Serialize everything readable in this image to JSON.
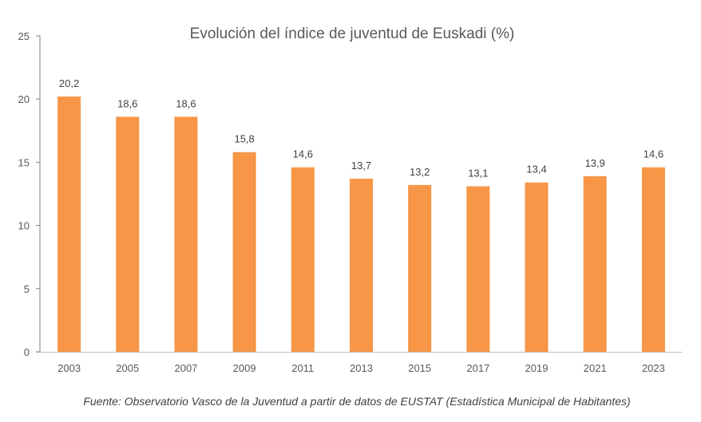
{
  "chart_data": {
    "type": "bar",
    "title": "Evolución del índice de juventud de Euskadi (%)",
    "categories": [
      "2003",
      "2005",
      "2007",
      "2009",
      "2011",
      "2013",
      "2015",
      "2017",
      "2019",
      "2021",
      "2023"
    ],
    "values": [
      20.2,
      18.6,
      18.6,
      15.8,
      14.6,
      13.7,
      13.2,
      13.1,
      13.4,
      13.9,
      14.6
    ],
    "data_labels": [
      "20,2",
      "18,6",
      "18,6",
      "15,8",
      "14,6",
      "13,7",
      "13,2",
      "13,1",
      "13,4",
      "13,9",
      "14,6"
    ],
    "yticks": [
      0,
      5,
      10,
      15,
      20,
      25
    ],
    "ylim": [
      0,
      25
    ],
    "grid": false,
    "legend": "none",
    "bar_color": "#F79646",
    "axis_color": "#7F7F7F",
    "source": "Fuente: Observatorio Vasco de la Juventud a partir de datos de EUSTAT (Estadística Municipal de Habitantes)"
  }
}
